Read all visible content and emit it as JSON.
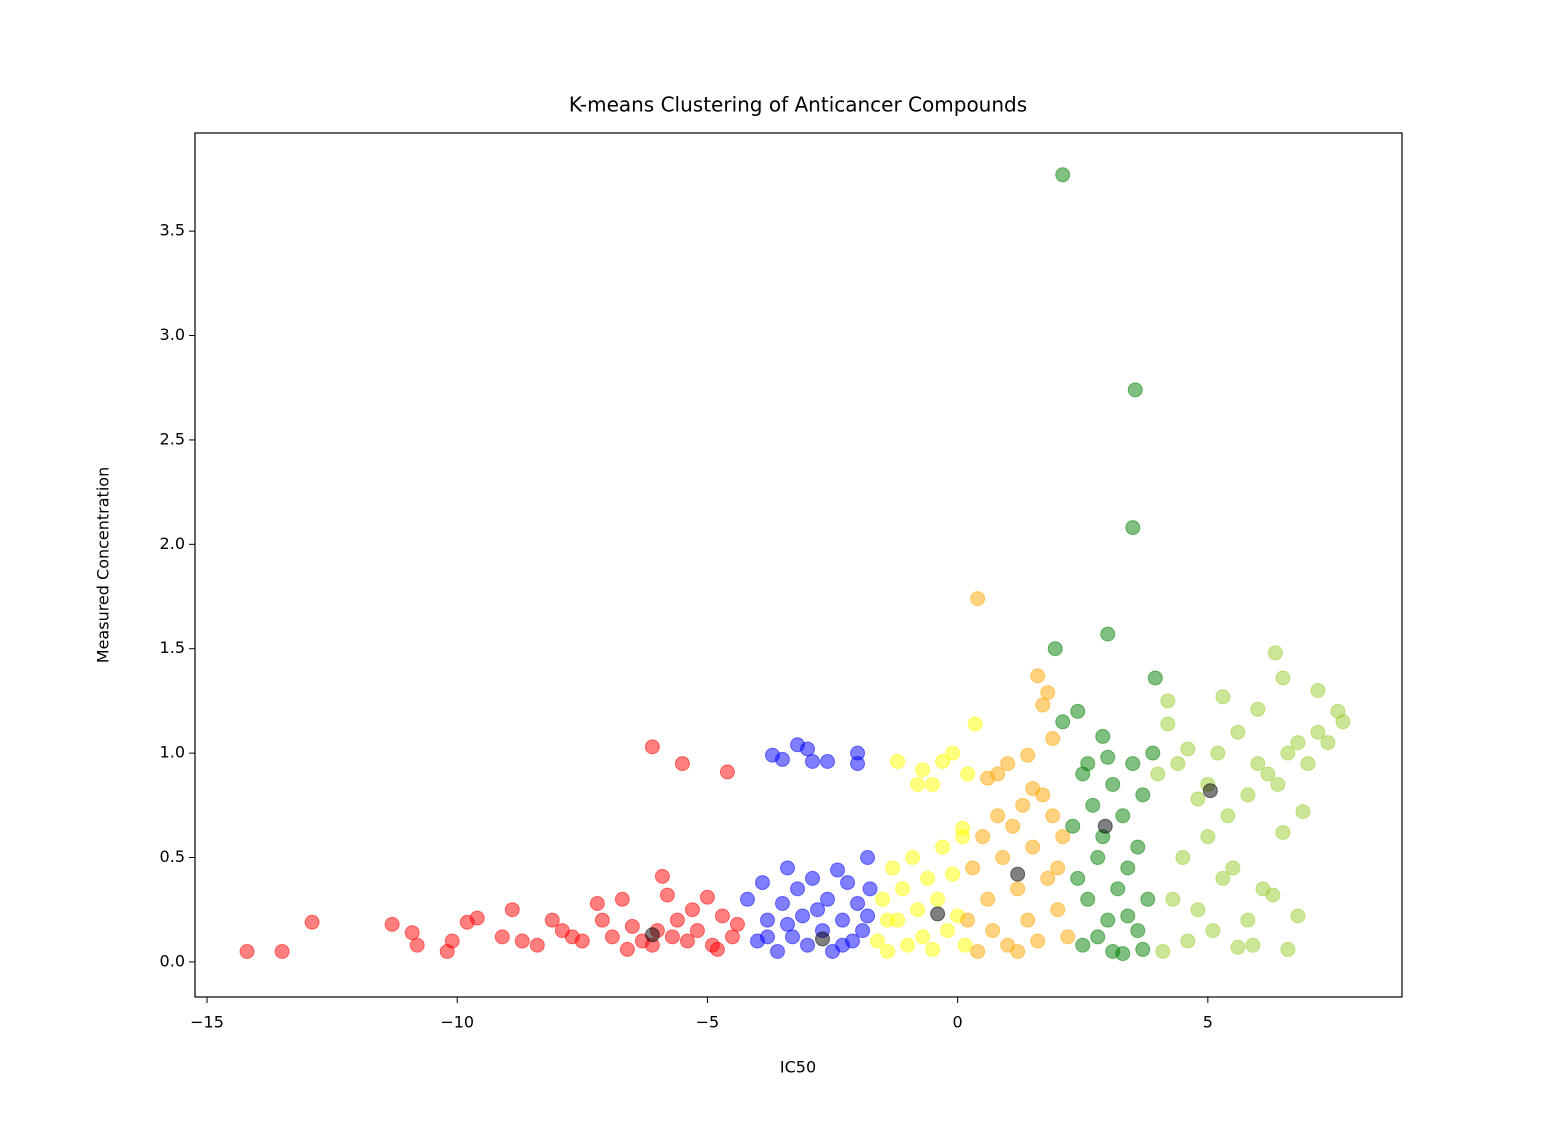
{
  "chart_data": {
    "type": "scatter",
    "title": "K-means Clustering of Anticancer Compounds",
    "x_label": "IC50",
    "y_label": "Measured Concentration",
    "xlim": [
      -15.24,
      8.88
    ],
    "ylim": [
      -0.168,
      3.97
    ],
    "xticks": [
      {
        "value": -15,
        "label": "−15"
      },
      {
        "value": -10,
        "label": "−10"
      },
      {
        "value": -5,
        "label": "−5"
      },
      0,
      5
    ],
    "yticks": [
      {
        "value": 0,
        "label": "0.0"
      },
      0.5,
      {
        "value": 1,
        "label": "1.0"
      },
      1.5,
      {
        "value": 2,
        "label": "2.0"
      },
      2.5,
      {
        "value": 3,
        "label": "3.0"
      },
      3.5
    ],
    "opacity": 0.5,
    "series": [
      {
        "color": "red",
        "x": [
          -14.2,
          -13.5,
          -12.9,
          -11.3,
          -10.9,
          -10.8,
          -10.2,
          -10.1,
          -9.8,
          -9.6,
          -9.1,
          -8.9,
          -8.7,
          -8.4,
          -8.1,
          -7.9,
          -7.7,
          -7.5,
          -7.2,
          -7.1,
          -6.9,
          -6.7,
          -6.5,
          -6.3,
          -6.1,
          -6.0,
          -5.9,
          -5.8,
          -5.6,
          -5.4,
          -5.2,
          -5.0,
          -4.9,
          -4.7,
          -4.5,
          -4.4,
          -6.1,
          -5.5,
          -4.6,
          -5.3,
          -4.8,
          -6.6,
          -5.7
        ],
        "values": [
          0.05,
          0.05,
          0.19,
          0.18,
          0.14,
          0.08,
          0.05,
          0.1,
          0.19,
          0.21,
          0.12,
          0.25,
          0.1,
          0.08,
          0.2,
          0.15,
          0.12,
          0.1,
          0.28,
          0.2,
          0.12,
          0.3,
          0.17,
          0.1,
          0.08,
          0.15,
          0.41,
          0.32,
          0.2,
          0.1,
          0.15,
          0.31,
          0.08,
          0.22,
          0.12,
          0.18,
          1.03,
          0.95,
          0.91,
          0.25,
          0.06,
          0.06,
          0.12
        ]
      },
      {
        "color": "blue",
        "x": [
          -4.2,
          -4.0,
          -3.9,
          -3.8,
          -3.6,
          -3.5,
          -3.4,
          -3.3,
          -3.2,
          -3.1,
          -3.0,
          -2.9,
          -2.8,
          -2.7,
          -2.6,
          -2.5,
          -2.4,
          -2.3,
          -2.2,
          -2.1,
          -2.0,
          -1.9,
          -1.8,
          -1.75,
          -3.7,
          -3.5,
          -3.2,
          -2.9,
          -2.6,
          -2.0,
          -2.0,
          -3.0,
          -3.4,
          -2.3,
          -3.8,
          -1.8
        ],
        "values": [
          0.3,
          0.1,
          0.38,
          0.2,
          0.05,
          0.28,
          0.45,
          0.12,
          0.35,
          0.22,
          0.08,
          0.4,
          0.25,
          0.15,
          0.3,
          0.05,
          0.44,
          0.2,
          0.38,
          0.1,
          0.28,
          0.15,
          0.5,
          0.35,
          0.99,
          0.97,
          1.04,
          0.96,
          0.96,
          1.0,
          0.95,
          1.02,
          0.18,
          0.08,
          0.12,
          0.22
        ]
      },
      {
        "color": "yellow",
        "x": [
          -1.6,
          -1.5,
          -1.4,
          -1.3,
          -1.2,
          -1.1,
          -1.0,
          -0.9,
          -0.8,
          -0.7,
          -0.6,
          -0.5,
          -0.4,
          -0.3,
          -0.2,
          -0.1,
          0.0,
          0.1,
          0.15,
          -1.2,
          -0.7,
          -0.3,
          0.2,
          0.1,
          -0.1,
          -0.8,
          -1.4,
          -0.5,
          0.35
        ],
        "values": [
          0.1,
          0.3,
          0.05,
          0.45,
          0.2,
          0.35,
          0.08,
          0.5,
          0.25,
          0.12,
          0.4,
          0.06,
          0.3,
          0.55,
          0.15,
          0.42,
          0.22,
          0.6,
          0.08,
          0.96,
          0.92,
          0.96,
          0.9,
          0.64,
          1.0,
          0.85,
          0.2,
          0.85,
          1.14
        ]
      },
      {
        "color": "orange",
        "x": [
          0.2,
          0.3,
          0.4,
          0.5,
          0.6,
          0.7,
          0.8,
          0.9,
          1.0,
          1.1,
          1.2,
          1.3,
          1.4,
          1.5,
          1.6,
          1.7,
          1.8,
          1.9,
          2.0,
          2.1,
          2.2,
          0.4,
          1.6,
          1.8,
          1.7,
          1.9,
          1.4,
          1.0,
          0.8,
          1.5,
          0.6,
          2.0,
          1.2
        ],
        "values": [
          0.2,
          0.45,
          0.05,
          0.6,
          0.3,
          0.15,
          0.7,
          0.5,
          0.08,
          0.65,
          0.35,
          0.75,
          0.2,
          0.55,
          0.1,
          0.8,
          0.4,
          0.7,
          0.25,
          0.6,
          0.12,
          1.74,
          1.37,
          1.29,
          1.23,
          1.07,
          0.99,
          0.95,
          0.9,
          0.83,
          0.88,
          0.45,
          0.05
        ]
      },
      {
        "color": "green",
        "x": [
          2.1,
          3.55,
          3.5,
          3.0,
          1.95,
          3.95,
          2.4,
          2.1,
          2.9,
          2.5,
          2.7,
          2.9,
          3.1,
          3.3,
          3.5,
          3.7,
          3.9,
          2.4,
          2.6,
          2.8,
          3.0,
          3.2,
          3.4,
          3.6,
          3.8,
          2.5,
          2.8,
          3.1,
          3.4,
          3.7,
          2.3,
          3.0,
          3.6,
          2.6,
          3.3
        ],
        "values": [
          3.77,
          2.74,
          2.08,
          1.57,
          1.5,
          1.36,
          1.2,
          1.15,
          1.08,
          0.9,
          0.75,
          0.6,
          0.85,
          0.7,
          0.95,
          0.8,
          1.0,
          0.4,
          0.3,
          0.5,
          0.2,
          0.35,
          0.45,
          0.15,
          0.3,
          0.08,
          0.12,
          0.05,
          0.22,
          0.06,
          0.65,
          0.98,
          0.55,
          0.95,
          0.04
        ]
      },
      {
        "color": "yellowgreen",
        "x": [
          4.0,
          4.2,
          4.4,
          4.6,
          4.8,
          5.0,
          5.2,
          5.4,
          5.6,
          5.8,
          6.0,
          6.2,
          6.4,
          6.6,
          6.8,
          7.0,
          7.2,
          7.4,
          7.6,
          7.7,
          6.35,
          6.5,
          5.3,
          4.2,
          6.0,
          7.2,
          4.5,
          5.0,
          5.5,
          6.1,
          6.5,
          6.9,
          4.3,
          4.8,
          5.3,
          5.8,
          6.3,
          6.8,
          4.6,
          5.1,
          5.9,
          6.6,
          4.1,
          5.6
        ],
        "values": [
          0.9,
          1.14,
          0.95,
          1.02,
          0.78,
          0.85,
          1.0,
          0.7,
          1.1,
          0.8,
          0.95,
          0.9,
          0.85,
          1.0,
          1.05,
          0.95,
          1.1,
          1.05,
          1.2,
          1.15,
          1.48,
          1.36,
          1.27,
          1.25,
          1.21,
          1.3,
          0.5,
          0.6,
          0.45,
          0.35,
          0.62,
          0.72,
          0.3,
          0.25,
          0.4,
          0.2,
          0.32,
          0.22,
          0.1,
          0.15,
          0.08,
          0.06,
          0.05,
          0.07
        ]
      },
      {
        "color": "black",
        "x": [
          -6.1,
          -2.7,
          -0.4,
          1.2,
          2.95,
          5.05
        ],
        "values": [
          0.13,
          0.11,
          0.23,
          0.42,
          0.65,
          0.82
        ]
      }
    ]
  }
}
